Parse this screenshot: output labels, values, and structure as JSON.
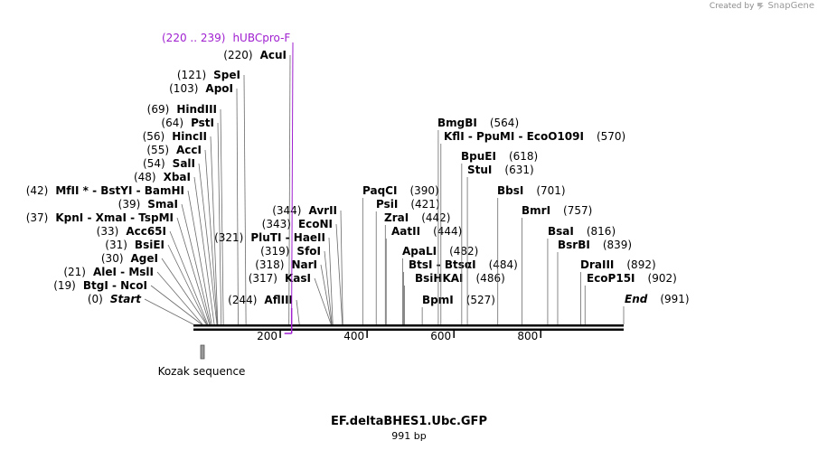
{
  "credit": {
    "prefix": "Created by",
    "brand": "SnapGene"
  },
  "sequence": {
    "title": "EF.deltaBHES1.Ubc.GFP",
    "length_label": "991 bp",
    "length": 991
  },
  "primer": {
    "range": "(220 .. 239)",
    "name": "hUBCpro-F",
    "start": 220,
    "end": 239,
    "color": "#a020d0"
  },
  "feature": {
    "name": "Kozak sequence",
    "position": 12
  },
  "ruler": {
    "ticks": [
      200,
      400,
      600,
      800
    ],
    "tick_labels": [
      "200",
      "400",
      "600",
      "800"
    ]
  },
  "sites": [
    {
      "pos": "(220)",
      "name": "AcuI",
      "n": 220
    },
    {
      "pos": "(121)",
      "name": "SpeI",
      "n": 121
    },
    {
      "pos": "(103)",
      "name": "ApoI",
      "n": 103
    },
    {
      "pos": "(69)",
      "name": "HindIII",
      "n": 69
    },
    {
      "pos": "(64)",
      "name": "PstI",
      "n": 64
    },
    {
      "pos": "(56)",
      "name": "HincII",
      "n": 56
    },
    {
      "pos": "(55)",
      "name": "AccI",
      "n": 55
    },
    {
      "pos": "(54)",
      "name": "SalI",
      "n": 54
    },
    {
      "pos": "(48)",
      "name": "XbaI",
      "n": 48
    },
    {
      "pos": "(42)",
      "name": "MfII * - BstYI - BamHI",
      "n": 42
    },
    {
      "pos": "(39)",
      "name": "SmaI",
      "n": 39
    },
    {
      "pos": "(37)",
      "name": "KpnI - XmaI - TspMI",
      "n": 37
    },
    {
      "pos": "(33)",
      "name": "Acc65I",
      "n": 33
    },
    {
      "pos": "(31)",
      "name": "BsiEI",
      "n": 31
    },
    {
      "pos": "(30)",
      "name": "AgeI",
      "n": 30
    },
    {
      "pos": "(21)",
      "name": "AleI - MslI",
      "n": 21
    },
    {
      "pos": "(19)",
      "name": "BtgI - NcoI",
      "n": 19
    },
    {
      "pos": "(0)",
      "name": "Start",
      "n": 0
    },
    {
      "pos": "(244)",
      "name": "AflIII",
      "n": 244
    },
    {
      "pos": "(321)",
      "name": "PluTI - HaeII",
      "n": 321
    },
    {
      "pos": "(344)",
      "name": "AvrII",
      "n": 344
    },
    {
      "pos": "(343)",
      "name": "EcoNI",
      "n": 343
    },
    {
      "pos": "(319)",
      "name": "SfoI",
      "n": 319
    },
    {
      "pos": "(318)",
      "name": "NarI",
      "n": 318
    },
    {
      "pos": "(317)",
      "name": "KasI",
      "n": 317
    },
    {
      "pos": "(390)",
      "name": "PaqCI",
      "n": 390
    },
    {
      "pos": "(421)",
      "name": "PsiI",
      "n": 421
    },
    {
      "pos": "(442)",
      "name": "ZraI",
      "n": 442
    },
    {
      "pos": "(444)",
      "name": "AatII",
      "n": 444
    },
    {
      "pos": "(482)",
      "name": "ApaLI",
      "n": 482
    },
    {
      "pos": "(484)",
      "name": "BtsI - BtsαI",
      "n": 484
    },
    {
      "pos": "(486)",
      "name": "BsiHKAI",
      "n": 486
    },
    {
      "pos": "(527)",
      "name": "BpmI",
      "n": 527
    },
    {
      "pos": "(564)",
      "name": "BmgBI",
      "n": 564
    },
    {
      "pos": "(570)",
      "name": "KflI - PpuMI - EcoO109I",
      "n": 570
    },
    {
      "pos": "(618)",
      "name": "BpuEI",
      "n": 618
    },
    {
      "pos": "(631)",
      "name": "StuI",
      "n": 631
    },
    {
      "pos": "(701)",
      "name": "BbsI",
      "n": 701
    },
    {
      "pos": "(757)",
      "name": "BmrI",
      "n": 757
    },
    {
      "pos": "(816)",
      "name": "BsaI",
      "n": 816
    },
    {
      "pos": "(839)",
      "name": "BsrBI",
      "n": 839
    },
    {
      "pos": "(892)",
      "name": "DraIII",
      "n": 892
    },
    {
      "pos": "(902)",
      "name": "EcoP15I",
      "n": 902
    },
    {
      "pos": "(991)",
      "name": "End",
      "n": 991
    }
  ]
}
